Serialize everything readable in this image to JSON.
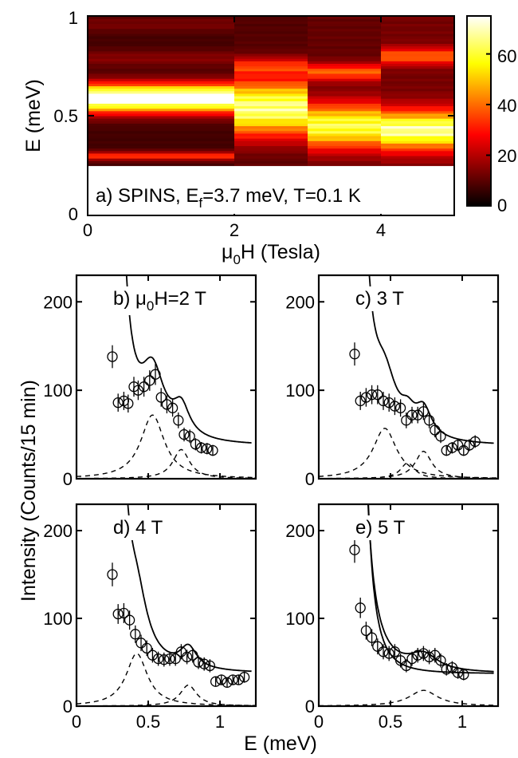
{
  "colors": {
    "axis": "#000000",
    "fit": "#000000",
    "marker": "#000000"
  },
  "chart_data": [
    {
      "type": "heatmap",
      "panel": "a",
      "annotation": {
        "prefix": "a) SPINS, E",
        "sub": "f",
        "suffix": "=3.7 meV, T=0.1 K"
      },
      "x": {
        "label_prefix": "μ",
        "label_sub": "0",
        "label_suffix": "H (Tesla)",
        "lim": [
          0,
          5
        ],
        "ticks": [
          0,
          2,
          4
        ],
        "tick_labels": [
          "0",
          "2",
          "4"
        ]
      },
      "y": {
        "label": "E (meV)",
        "lim": [
          0,
          1
        ],
        "ticks": [
          0,
          0.5,
          1
        ],
        "tick_labels": [
          "0",
          "0.5",
          "1"
        ]
      },
      "data_extent_y": [
        0.25,
        1.0
      ],
      "columns": [
        {
          "x0": 0,
          "x1": 2,
          "peak_E": 0.59,
          "peak_width": 0.05,
          "peak_I": 80,
          "bg": 8,
          "extra": [
            {
              "E": 0.3,
              "I": 28,
              "w": 0.015
            },
            {
              "E": 0.79,
              "I": 8,
              "w": 0.03
            },
            {
              "E": 0.96,
              "I": 6,
              "w": 0.03
            }
          ]
        },
        {
          "x0": 2,
          "x1": 3,
          "peak_E": 0.54,
          "peak_width": 0.1,
          "peak_I": 62,
          "bg": 10,
          "extra": [
            {
              "E": 0.75,
              "I": 22,
              "w": 0.03
            }
          ]
        },
        {
          "x0": 3,
          "x1": 4,
          "peak_E": 0.45,
          "peak_width": 0.08,
          "peak_I": 55,
          "bg": 12,
          "extra": [
            {
              "E": 0.72,
              "I": 30,
              "w": 0.03
            }
          ]
        },
        {
          "x0": 4,
          "x1": 5,
          "peak_E": 0.43,
          "peak_width": 0.07,
          "peak_I": 60,
          "bg": 14,
          "extra": [
            {
              "E": 0.8,
              "I": 28,
              "w": 0.03
            }
          ]
        }
      ],
      "colorbar": {
        "lim": [
          0,
          75
        ],
        "ticks": [
          0,
          20,
          40,
          60
        ],
        "tick_labels": [
          "0",
          "20",
          "40",
          "60"
        ],
        "colormap": "hot"
      }
    },
    {
      "type": "scatter",
      "panel": "b",
      "annotation": {
        "prefix": "b) μ",
        "sub": "0",
        "suffix": "H=2 T"
      },
      "xlim": [
        0,
        1.25
      ],
      "ylim": [
        0,
        230
      ],
      "y_ticks": [
        0,
        100,
        200
      ],
      "y_tick_labels": [
        "0",
        "100",
        "200"
      ],
      "x_tick_labels_shown": false,
      "points": [
        [
          0.25,
          138
        ],
        [
          0.29,
          86
        ],
        [
          0.33,
          88
        ],
        [
          0.36,
          85
        ],
        [
          0.4,
          104
        ],
        [
          0.43,
          100
        ],
        [
          0.47,
          104
        ],
        [
          0.51,
          111
        ],
        [
          0.55,
          118
        ],
        [
          0.59,
          92
        ],
        [
          0.63,
          84
        ],
        [
          0.67,
          80
        ],
        [
          0.71,
          66
        ],
        [
          0.75,
          50
        ],
        [
          0.79,
          48
        ],
        [
          0.83,
          39
        ],
        [
          0.87,
          35
        ],
        [
          0.91,
          34
        ],
        [
          0.95,
          32
        ]
      ],
      "fit": {
        "background": 37,
        "tail_A": 1.5,
        "tail_x0": 0.2,
        "tail_p": 2.5,
        "peaks": [
          {
            "center": 0.53,
            "width": 0.1,
            "height": 72
          },
          {
            "center": 0.73,
            "width": 0.07,
            "height": 33
          }
        ]
      }
    },
    {
      "type": "scatter",
      "panel": "c",
      "annotation": {
        "prefix": "c) 3 T",
        "sub": "",
        "suffix": ""
      },
      "xlim": [
        0,
        1.25
      ],
      "ylim": [
        0,
        230
      ],
      "y_ticks": [
        0,
        100,
        200
      ],
      "y_tick_labels": [
        "0",
        "100",
        "200"
      ],
      "x_tick_labels_shown": false,
      "points": [
        [
          0.25,
          141
        ],
        [
          0.29,
          88
        ],
        [
          0.33,
          92
        ],
        [
          0.37,
          95
        ],
        [
          0.41,
          95
        ],
        [
          0.45,
          88
        ],
        [
          0.49,
          86
        ],
        [
          0.53,
          82
        ],
        [
          0.57,
          80
        ],
        [
          0.61,
          66
        ],
        [
          0.65,
          72
        ],
        [
          0.69,
          72
        ],
        [
          0.73,
          76
        ],
        [
          0.77,
          66
        ],
        [
          0.81,
          55
        ],
        [
          0.85,
          48
        ],
        [
          0.89,
          32
        ],
        [
          0.93,
          35
        ],
        [
          0.97,
          38
        ],
        [
          1.01,
          32
        ],
        [
          1.05,
          38
        ],
        [
          1.09,
          42
        ]
      ],
      "fit": {
        "background": 37,
        "tail_A": 1.5,
        "tail_x0": 0.2,
        "tail_p": 2.5,
        "peaks": [
          {
            "center": 0.46,
            "width": 0.1,
            "height": 57
          },
          {
            "center": 0.62,
            "width": 0.06,
            "height": 18
          },
          {
            "center": 0.73,
            "width": 0.07,
            "height": 31
          }
        ]
      }
    },
    {
      "type": "scatter",
      "panel": "d",
      "annotation": {
        "prefix": "d) 4 T",
        "sub": "",
        "suffix": ""
      },
      "xlim": [
        0,
        1.25
      ],
      "ylim": [
        0,
        230
      ],
      "y_ticks": [
        0,
        100,
        200
      ],
      "y_tick_labels": [
        "0",
        "100",
        "200"
      ],
      "x_ticks": [
        0,
        0.5,
        1
      ],
      "x_tick_labels": [
        "0",
        "0.5",
        "1"
      ],
      "points": [
        [
          0.25,
          150
        ],
        [
          0.29,
          105
        ],
        [
          0.33,
          106
        ],
        [
          0.37,
          98
        ],
        [
          0.41,
          82
        ],
        [
          0.45,
          72
        ],
        [
          0.49,
          66
        ],
        [
          0.53,
          58
        ],
        [
          0.57,
          54
        ],
        [
          0.61,
          53
        ],
        [
          0.65,
          54
        ],
        [
          0.69,
          54
        ],
        [
          0.73,
          62
        ],
        [
          0.77,
          56
        ],
        [
          0.81,
          58
        ],
        [
          0.85,
          50
        ],
        [
          0.89,
          48
        ],
        [
          0.93,
          46
        ],
        [
          0.97,
          28
        ],
        [
          1.01,
          30
        ],
        [
          1.05,
          27
        ],
        [
          1.09,
          30
        ],
        [
          1.13,
          30
        ],
        [
          1.17,
          33
        ]
      ],
      "fit": {
        "background": 37,
        "tail_A": 1.5,
        "tail_x0": 0.2,
        "tail_p": 2.5,
        "peaks": [
          {
            "center": 0.42,
            "width": 0.09,
            "height": 60
          },
          {
            "center": 0.78,
            "width": 0.07,
            "height": 24
          }
        ]
      }
    },
    {
      "type": "scatter",
      "panel": "e",
      "annotation": {
        "prefix": "e) 5 T",
        "sub": "",
        "suffix": ""
      },
      "xlim": [
        0,
        1.25
      ],
      "ylim": [
        0,
        230
      ],
      "y_ticks": [
        0,
        100,
        200
      ],
      "y_tick_labels": [
        "0",
        "100",
        "200"
      ],
      "x_ticks": [
        0,
        0.5,
        1
      ],
      "x_tick_labels": [
        "0",
        "0.5",
        "1"
      ],
      "points": [
        [
          0.25,
          178
        ],
        [
          0.29,
          112
        ],
        [
          0.33,
          86
        ],
        [
          0.37,
          78
        ],
        [
          0.41,
          68
        ],
        [
          0.45,
          62
        ],
        [
          0.49,
          60
        ],
        [
          0.53,
          62
        ],
        [
          0.57,
          52
        ],
        [
          0.61,
          46
        ],
        [
          0.65,
          54
        ],
        [
          0.69,
          58
        ],
        [
          0.73,
          60
        ],
        [
          0.77,
          56
        ],
        [
          0.81,
          58
        ],
        [
          0.85,
          52
        ],
        [
          0.89,
          42
        ],
        [
          0.93,
          44
        ],
        [
          0.97,
          38
        ],
        [
          1.01,
          36
        ]
      ],
      "fit": {
        "background": 37,
        "tail_A": 1.5,
        "tail_x0": 0.2,
        "tail_p": 2.5,
        "peaks": [
          {
            "center": 0.73,
            "width": 0.12,
            "height": 18
          }
        ]
      },
      "fit2": {
        "background": 37,
        "tail_A": 0.6,
        "tail_x0": 0.2,
        "tail_p": 3.0,
        "peaks": []
      }
    }
  ],
  "shared": {
    "ylabel": "Intensity (Counts/15 min)",
    "xlabel": "E (meV)"
  }
}
